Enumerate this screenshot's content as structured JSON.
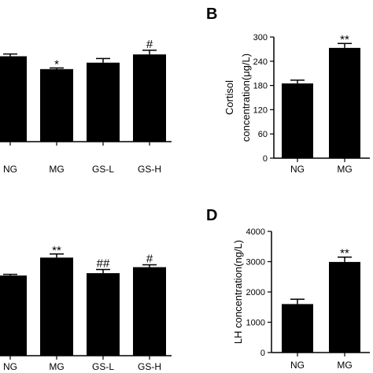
{
  "chart_data": [
    {
      "panel": "",
      "type": "bar",
      "categories": [
        "NG",
        "MG",
        "GS-L",
        "GS-H"
      ],
      "values": [
        0.93,
        0.79,
        0.86,
        0.95
      ],
      "errors": [
        0.025,
        0.012,
        0.045,
        0.045
      ],
      "annotations": [
        "",
        "*",
        "",
        "#"
      ],
      "ylim": [
        0,
        1.2
      ],
      "yticks": [],
      "ylabel": "",
      "xlabel": "",
      "title": ""
    },
    {
      "panel": "B",
      "type": "bar",
      "categories": [
        "NG",
        "MG"
      ],
      "values": [
        185,
        273
      ],
      "errors": [
        8,
        11
      ],
      "annotations": [
        "",
        "**"
      ],
      "ylim": [
        0,
        300
      ],
      "yticks": [
        0,
        60,
        120,
        180,
        240,
        300
      ],
      "ylabel": "Cortisol concentration(μg/L)",
      "ylabel_lines": [
        "Cortisol",
        "concentration(μg/L)"
      ],
      "xlabel": "",
      "title": ""
    },
    {
      "panel": "",
      "type": "bar",
      "categories": [
        "NG",
        "MG",
        "GS-L",
        "GS-H"
      ],
      "values": [
        0.67,
        0.82,
        0.69,
        0.74
      ],
      "errors": [
        0.01,
        0.03,
        0.03,
        0.02
      ],
      "annotations": [
        "",
        "**",
        "##",
        "#"
      ],
      "ylim": [
        0,
        1.0
      ],
      "yticks": [],
      "ylabel": "",
      "xlabel": "",
      "title": ""
    },
    {
      "panel": "D",
      "type": "bar",
      "categories": [
        "NG",
        "MG"
      ],
      "values": [
        1600,
        2990
      ],
      "errors": [
        160,
        160
      ],
      "annotations": [
        "",
        "**"
      ],
      "ylim": [
        0,
        4000
      ],
      "yticks": [
        0,
        1000,
        2000,
        3000,
        4000
      ],
      "ylabel": "LH concentration(ng/L)",
      "ylabel_lines": [
        "LH concentration(ng/L)"
      ],
      "xlabel": "",
      "title": ""
    }
  ]
}
